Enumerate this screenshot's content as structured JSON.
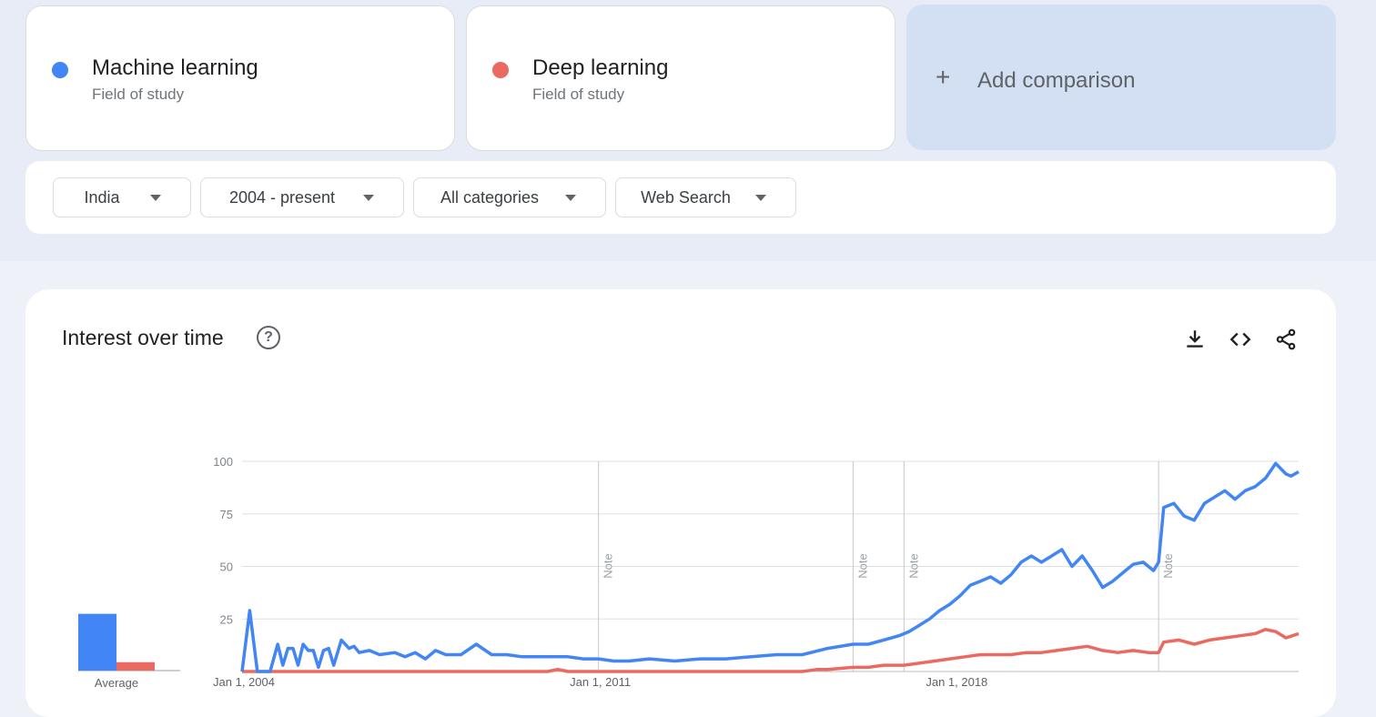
{
  "terms": [
    {
      "name": "Machine learning",
      "subtitle": "Field of study",
      "color": "#4285f4"
    },
    {
      "name": "Deep learning",
      "subtitle": "Field of study",
      "color": "#ea6a61"
    }
  ],
  "add_comparison": {
    "icon": "plus-icon",
    "label": "Add comparison"
  },
  "filters": {
    "region": "India",
    "time_range": "2004 - present",
    "category": "All categories",
    "search_type": "Web Search"
  },
  "chart_section": {
    "title": "Interest over time",
    "help_icon": "question-mark-icon",
    "toolbar_icons": [
      "download-icon",
      "embed-code-icon",
      "share-icon"
    ],
    "average_label": "Average",
    "note_label": "Note"
  },
  "chart_data": {
    "type": "line",
    "xlabel": "",
    "ylabel": "",
    "ylim": [
      0,
      100
    ],
    "y_ticks": [
      25,
      50,
      75,
      100
    ],
    "x_tick_labels": [
      "Jan 1, 2004",
      "Jan 1, 2011",
      "Jan 1, 2018"
    ],
    "x_range": [
      2004.0,
      2024.75
    ],
    "notes_at": [
      2011.0,
      2016.0,
      2017.0,
      2022.0
    ],
    "grid": true,
    "averages": {
      "Machine learning": 27,
      "Deep learning": 4
    },
    "series": [
      {
        "name": "Machine learning",
        "color": "#4285f4",
        "points": [
          [
            2004.0,
            0
          ],
          [
            2004.15,
            29
          ],
          [
            2004.3,
            0
          ],
          [
            2004.55,
            0
          ],
          [
            2004.7,
            13
          ],
          [
            2004.8,
            3
          ],
          [
            2004.9,
            11
          ],
          [
            2005.0,
            11
          ],
          [
            2005.1,
            3
          ],
          [
            2005.2,
            13
          ],
          [
            2005.3,
            10
          ],
          [
            2005.4,
            10
          ],
          [
            2005.5,
            2
          ],
          [
            2005.6,
            10
          ],
          [
            2005.7,
            11
          ],
          [
            2005.8,
            3
          ],
          [
            2005.95,
            15
          ],
          [
            2006.1,
            11
          ],
          [
            2006.2,
            12
          ],
          [
            2006.3,
            9
          ],
          [
            2006.5,
            10
          ],
          [
            2006.7,
            8
          ],
          [
            2007.0,
            9
          ],
          [
            2007.2,
            7
          ],
          [
            2007.4,
            9
          ],
          [
            2007.6,
            6
          ],
          [
            2007.8,
            10
          ],
          [
            2008.0,
            8
          ],
          [
            2008.3,
            8
          ],
          [
            2008.6,
            13
          ],
          [
            2008.9,
            8
          ],
          [
            2009.2,
            8
          ],
          [
            2009.5,
            7
          ],
          [
            2009.8,
            7
          ],
          [
            2010.1,
            7
          ],
          [
            2010.4,
            7
          ],
          [
            2010.7,
            6
          ],
          [
            2011.0,
            6
          ],
          [
            2011.3,
            5
          ],
          [
            2011.6,
            5
          ],
          [
            2012.0,
            6
          ],
          [
            2012.5,
            5
          ],
          [
            2013.0,
            6
          ],
          [
            2013.5,
            6
          ],
          [
            2014.0,
            7
          ],
          [
            2014.5,
            8
          ],
          [
            2015.0,
            8
          ],
          [
            2015.5,
            11
          ],
          [
            2016.0,
            13
          ],
          [
            2016.3,
            13
          ],
          [
            2016.6,
            15
          ],
          [
            2016.9,
            17
          ],
          [
            2017.1,
            19
          ],
          [
            2017.3,
            22
          ],
          [
            2017.5,
            25
          ],
          [
            2017.7,
            29
          ],
          [
            2017.9,
            32
          ],
          [
            2018.1,
            36
          ],
          [
            2018.3,
            41
          ],
          [
            2018.5,
            43
          ],
          [
            2018.7,
            45
          ],
          [
            2018.9,
            42
          ],
          [
            2019.1,
            46
          ],
          [
            2019.3,
            52
          ],
          [
            2019.5,
            55
          ],
          [
            2019.7,
            52
          ],
          [
            2019.9,
            55
          ],
          [
            2020.1,
            58
          ],
          [
            2020.3,
            50
          ],
          [
            2020.5,
            55
          ],
          [
            2020.7,
            48
          ],
          [
            2020.9,
            40
          ],
          [
            2021.1,
            43
          ],
          [
            2021.3,
            47
          ],
          [
            2021.5,
            51
          ],
          [
            2021.7,
            52
          ],
          [
            2021.9,
            48
          ],
          [
            2022.0,
            52
          ],
          [
            2022.1,
            78
          ],
          [
            2022.3,
            80
          ],
          [
            2022.5,
            74
          ],
          [
            2022.7,
            72
          ],
          [
            2022.9,
            80
          ],
          [
            2023.1,
            83
          ],
          [
            2023.3,
            86
          ],
          [
            2023.5,
            82
          ],
          [
            2023.7,
            86
          ],
          [
            2023.9,
            88
          ],
          [
            2024.1,
            92
          ],
          [
            2024.3,
            99
          ],
          [
            2024.5,
            94
          ],
          [
            2024.6,
            93
          ],
          [
            2024.75,
            95
          ]
        ]
      },
      {
        "name": "Deep learning",
        "color": "#ea6a61",
        "points": [
          [
            2004.0,
            0
          ],
          [
            2010.0,
            0
          ],
          [
            2010.2,
            1
          ],
          [
            2010.4,
            0
          ],
          [
            2015.0,
            0
          ],
          [
            2015.3,
            1
          ],
          [
            2015.5,
            1
          ],
          [
            2016.0,
            2
          ],
          [
            2016.3,
            2
          ],
          [
            2016.6,
            3
          ],
          [
            2017.0,
            3
          ],
          [
            2017.3,
            4
          ],
          [
            2017.6,
            5
          ],
          [
            2017.9,
            6
          ],
          [
            2018.2,
            7
          ],
          [
            2018.5,
            8
          ],
          [
            2018.8,
            8
          ],
          [
            2019.1,
            8
          ],
          [
            2019.4,
            9
          ],
          [
            2019.7,
            9
          ],
          [
            2020.0,
            10
          ],
          [
            2020.3,
            11
          ],
          [
            2020.6,
            12
          ],
          [
            2020.9,
            10
          ],
          [
            2021.2,
            9
          ],
          [
            2021.5,
            10
          ],
          [
            2021.8,
            9
          ],
          [
            2022.0,
            9
          ],
          [
            2022.1,
            14
          ],
          [
            2022.4,
            15
          ],
          [
            2022.7,
            13
          ],
          [
            2023.0,
            15
          ],
          [
            2023.3,
            16
          ],
          [
            2023.6,
            17
          ],
          [
            2023.9,
            18
          ],
          [
            2024.1,
            20
          ],
          [
            2024.3,
            19
          ],
          [
            2024.5,
            16
          ],
          [
            2024.75,
            18
          ]
        ]
      }
    ]
  }
}
